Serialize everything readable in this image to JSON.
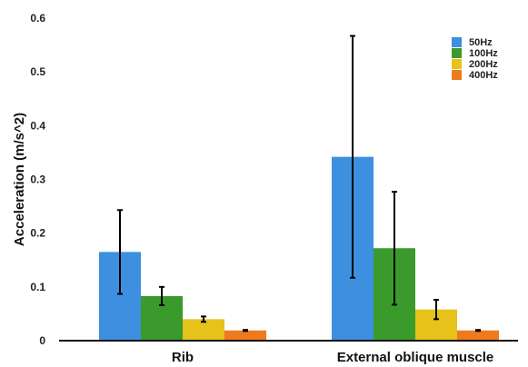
{
  "chart_data": {
    "type": "bar",
    "title": "",
    "xlabel": "",
    "ylabel": "Acceleration (m/s^2)",
    "ylim": [
      0,
      0.6
    ],
    "yticks": [
      "0",
      "0.1",
      "0.2",
      "0.3",
      "0.4",
      "0.5",
      "0.6"
    ],
    "grid": false,
    "legend_position": "top-right",
    "categories": [
      "Rib",
      "External oblique muscle"
    ],
    "series": [
      {
        "name": "50Hz",
        "color": "#3d8fe0",
        "values": [
          0.165,
          0.342
        ],
        "errors": [
          0.078,
          0.225
        ]
      },
      {
        "name": "100Hz",
        "color": "#3a9a2c",
        "values": [
          0.083,
          0.172
        ],
        "errors": [
          0.017,
          0.105
        ]
      },
      {
        "name": "200Hz",
        "color": "#e6c21a",
        "values": [
          0.04,
          0.058
        ],
        "errors": [
          0.005,
          0.018
        ]
      },
      {
        "name": "400Hz",
        "color": "#ee7a1f",
        "values": [
          0.019,
          0.019
        ],
        "errors": [
          0.001,
          0.001
        ]
      }
    ]
  }
}
